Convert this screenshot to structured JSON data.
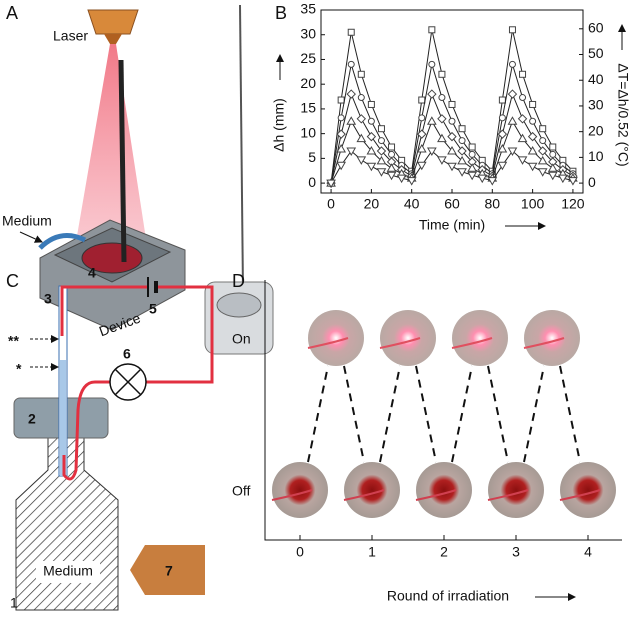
{
  "panel_a": {
    "letter": "A",
    "labels": {
      "laser": "Laser",
      "medium": "Medium",
      "device": "Device"
    }
  },
  "chart_data": {
    "type": "line",
    "panel_label": "B",
    "xlabel": "Time (min)",
    "ylabel": "Δh (mm)",
    "y2label": "ΔT=Δh/0.52 (°C)",
    "x": [
      0,
      5,
      10,
      15,
      20,
      25,
      30,
      35,
      40,
      45,
      50,
      55,
      60,
      65,
      70,
      75,
      80,
      85,
      90,
      95,
      100,
      105,
      110,
      115,
      120
    ],
    "series": [
      {
        "marker": "square",
        "color": "#444",
        "values": [
          0,
          16.8,
          30.5,
          22.0,
          15.9,
          11.0,
          7.3,
          4.6,
          2.4,
          16.8,
          31.0,
          22.0,
          15.9,
          11.0,
          7.3,
          4.6,
          2.4,
          16.8,
          31.0,
          22.0,
          15.9,
          11.0,
          7.3,
          4.6,
          2.4
        ]
      },
      {
        "marker": "circle",
        "color": "#444",
        "values": [
          0,
          13.2,
          24.0,
          17.3,
          12.5,
          8.6,
          5.8,
          3.6,
          1.9,
          13.2,
          24.0,
          17.3,
          12.5,
          8.6,
          5.8,
          3.6,
          1.9,
          13.2,
          24.0,
          17.3,
          12.5,
          8.6,
          5.8,
          3.6,
          1.9
        ]
      },
      {
        "marker": "diamond",
        "color": "#444",
        "values": [
          0,
          9.9,
          18.0,
          13.0,
          9.4,
          6.5,
          4.3,
          2.7,
          1.4,
          9.9,
          18.0,
          13.0,
          9.4,
          6.5,
          4.3,
          2.7,
          1.4,
          9.9,
          18.0,
          13.0,
          9.4,
          6.5,
          4.3,
          2.7,
          1.4
        ]
      },
      {
        "marker": "triangle",
        "color": "#444",
        "values": [
          0,
          6.9,
          12.5,
          9.0,
          6.5,
          4.5,
          3.0,
          1.9,
          1.0,
          6.9,
          12.5,
          9.0,
          6.5,
          4.5,
          3.0,
          1.9,
          1.0,
          6.9,
          12.5,
          9.0,
          6.5,
          4.5,
          3.0,
          1.9,
          1.0
        ]
      },
      {
        "marker": "triangle-down",
        "color": "#444",
        "values": [
          0,
          3.6,
          6.5,
          4.7,
          3.4,
          2.3,
          1.6,
          1.0,
          0.5,
          3.6,
          6.5,
          4.7,
          3.4,
          2.3,
          1.6,
          1.0,
          0.5,
          3.6,
          6.5,
          4.7,
          3.4,
          2.3,
          1.6,
          1.0,
          0.5
        ]
      }
    ],
    "xlim": [
      -5,
      125
    ],
    "xticks": [
      0,
      20,
      40,
      60,
      80,
      100,
      120
    ],
    "ylim": [
      -2,
      35
    ],
    "yticks": [
      0,
      5,
      10,
      15,
      20,
      25,
      30,
      35
    ],
    "y2lim": [
      -3.85,
      67.31
    ],
    "y2ticks": [
      0,
      10,
      20,
      30,
      40,
      50,
      60
    ]
  },
  "panel_c": {
    "letter": "C",
    "numbers": [
      "1",
      "2",
      "3",
      "4",
      "5",
      "6",
      "7"
    ],
    "markers": [
      "**",
      "*"
    ],
    "medium": "Medium"
  },
  "panel_d": {
    "letter": "D",
    "y_labels": [
      "On",
      "Off"
    ],
    "x_ticks": [
      0,
      1,
      2,
      3,
      4
    ],
    "x_label": "Round of irradiation"
  }
}
